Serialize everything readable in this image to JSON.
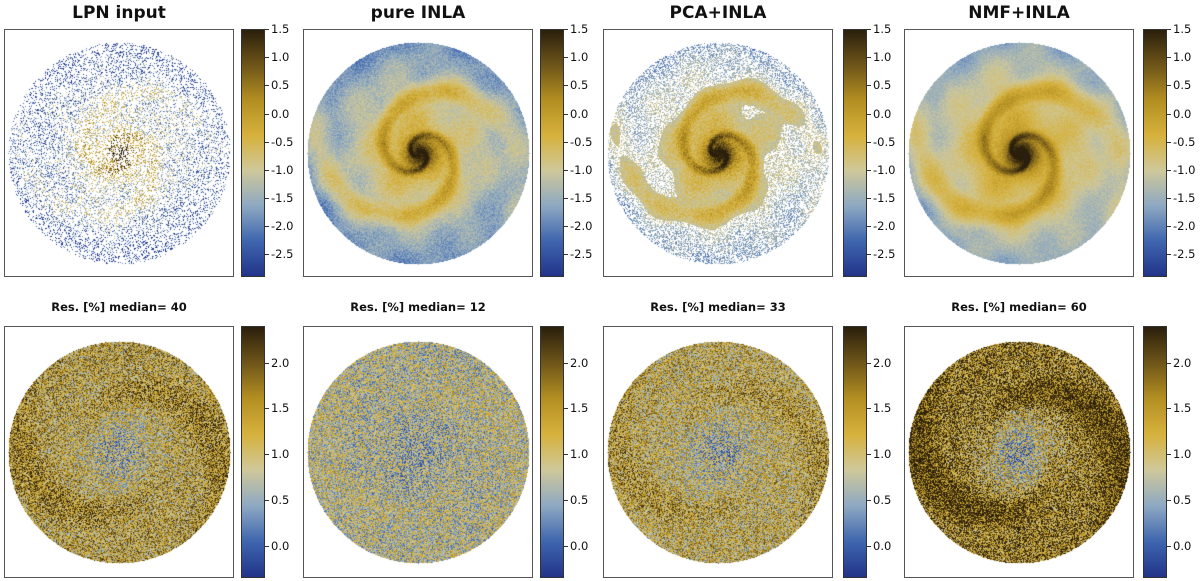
{
  "chart_data": [
    {
      "type": "heatmap",
      "title": "LPN input",
      "colorbar": {
        "min": -2.9,
        "max": 1.5,
        "ticks": [
          "1.5",
          "1.0",
          "0.5",
          "0.0",
          "-0.5",
          "-1.0",
          "-1.5",
          "-2.0",
          "-2.5"
        ]
      },
      "pattern": "sparse-input",
      "coverage": 0.35
    },
    {
      "type": "heatmap",
      "title": "pure INLA",
      "colorbar": {
        "min": -2.9,
        "max": 1.5,
        "ticks": [
          "1.5",
          "1.0",
          "0.5",
          "0.0",
          "-0.5",
          "-1.0",
          "-1.5",
          "-2.0",
          "-2.5"
        ]
      },
      "pattern": "spiral",
      "coverage": 1.0
    },
    {
      "type": "heatmap",
      "title": "PCA+INLA",
      "colorbar": {
        "min": -2.9,
        "max": 1.5,
        "ticks": [
          "1.5",
          "1.0",
          "0.5",
          "0.0",
          "-0.5",
          "-1.0",
          "-1.5",
          "-2.0",
          "-2.5"
        ]
      },
      "pattern": "spiral-gappy",
      "coverage": 0.8
    },
    {
      "type": "heatmap",
      "title": "NMF+INLA",
      "colorbar": {
        "min": -2.9,
        "max": 1.5,
        "ticks": [
          "1.5",
          "1.0",
          "0.5",
          "0.0",
          "-0.5",
          "-1.0",
          "-1.5",
          "-2.0",
          "-2.5"
        ]
      },
      "pattern": "spiral-smooth",
      "coverage": 1.0
    },
    {
      "type": "heatmap",
      "title": "Res. [%]  median= 40",
      "colorbar": {
        "min": -0.35,
        "max": 2.4,
        "ticks": [
          "2.0",
          "1.5",
          "1.0",
          "0.5",
          "0.0"
        ]
      },
      "pattern": "residual",
      "median": 40
    },
    {
      "type": "heatmap",
      "title": "Res. [%]  median= 12",
      "colorbar": {
        "min": -0.35,
        "max": 2.4,
        "ticks": [
          "2.0",
          "1.5",
          "1.0",
          "0.5",
          "0.0"
        ]
      },
      "pattern": "residual",
      "median": 12
    },
    {
      "type": "heatmap",
      "title": "Res. [%]  median= 33",
      "colorbar": {
        "min": -0.35,
        "max": 2.4,
        "ticks": [
          "2.0",
          "1.5",
          "1.0",
          "0.5",
          "0.0"
        ]
      },
      "pattern": "residual",
      "median": 33
    },
    {
      "type": "heatmap",
      "title": "Res. [%]  median= 60",
      "colorbar": {
        "min": -0.35,
        "max": 2.4,
        "ticks": [
          "2.0",
          "1.5",
          "1.0",
          "0.5",
          "0.0"
        ]
      },
      "pattern": "residual",
      "median": 60
    }
  ],
  "colormap": [
    "#22348a",
    "#3f66ae",
    "#8ea9c2",
    "#cfc89a",
    "#d6b13c",
    "#b38f22",
    "#6e5519",
    "#2a1f0c"
  ]
}
